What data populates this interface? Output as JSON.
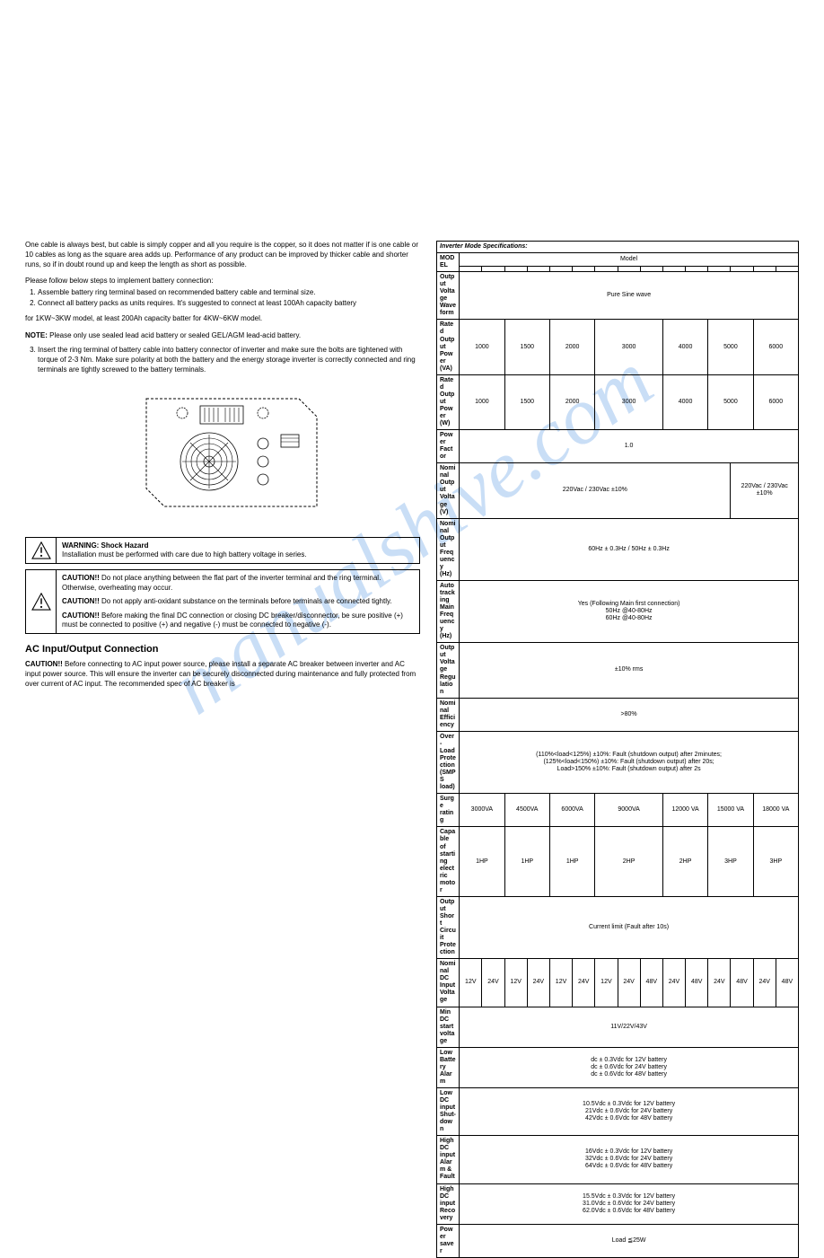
{
  "left": {
    "para1": "One cable is always best, but cable is simply copper and all you require is the copper, so it does not matter if is one cable or 10 cables as long as the square area adds up. Performance of any product can be improved by thicker cable and shorter runs, so if in doubt round up and keep the length as short as possible.",
    "follow": "Please follow below steps to implement battery connection:",
    "steps": [
      "Assemble battery ring terminal based on recommended battery cable and terminal size.",
      "Connect all battery packs as units requires. It's suggested to connect at least 100Ah capacity battery"
    ],
    "step2_cont": "for 1KW~3KW model, at least 200Ah capacity batter for 4KW~6KW model.",
    "note_label": "NOTE:",
    "note_text": " Please only use sealed lead acid battery or sealed GEL/AGM lead-acid battery.",
    "step3": "Insert the ring terminal of battery cable into battery connector of inverter and make sure the bolts are tightened with torque of 2-3 Nm. Make sure polarity at both the battery and the energy storage inverter is correctly connected and ring terminals are tightly screwed to the battery terminals.",
    "warning_title": "WARNING: Shock Hazard",
    "warning_text": "Installation must be performed with care due to high battery voltage in series.",
    "caution1_bold": "CAUTION!!",
    "caution1_text": " Do not place anything between the flat part of the inverter terminal and the ring terminal. Otherwise, overheating may occur.",
    "caution2_bold": "CAUTION!!",
    "caution2_text": " Do not apply anti-oxidant substance on the terminals before terminals are connected tightly.",
    "caution3_bold": "CAUTION!!",
    "caution3_text": " Before making the final DC connection or closing DC breaker/disconnector, be sure positive (+) must be connected to positive (+) and negative (-) must be connected to negative (-).",
    "section_title": "AC Input/Output Connection",
    "ac_caution_bold": "CAUTION!!",
    "ac_caution_text": " Before connecting to AC input power source, please install a separate AC breaker between inverter and AC input power source. This will ensure the inverter can be securely disconnected during maintenance and fully protected from over current of AC input. The recommended spec of AC breaker is"
  },
  "spec": {
    "title": "Inverter Mode Specifications:",
    "model_label": "MODEL",
    "model_head": "Model",
    "rows": {
      "waveform_label": "Output Voltage Waveform",
      "waveform_val": "Pure Sine wave",
      "rated_va_label": "Rated Output Power (VA)",
      "rated_w_label": "Rated Output Power (W)",
      "va_vals": [
        "1000",
        "1500",
        "2000",
        "3000",
        "4000",
        "5000",
        "6000"
      ],
      "w_vals": [
        "1000",
        "1500",
        "2000",
        "3000",
        "4000",
        "5000",
        "6000"
      ],
      "pf_label": "Power Factor",
      "pf_val": "1.0",
      "nom_v_label": "Nominal Output Voltage (V)",
      "nom_v_main": "220Vac / 230Vac ±10%",
      "nom_v_side": "220Vac / 230Vac ±10%",
      "nom_f_label": "Nominal Output Frequency (Hz)",
      "nom_f_val": "60Hz ± 0.3Hz / 50Hz ± 0.3Hz",
      "auto_label": "Auto tracking Main Frequency (Hz)",
      "auto_val": "Yes (Following Main first connection)\n50Hz @40-80Hz\n60Hz @40-80Hz",
      "reg_label": "Output Voltage Regulation",
      "reg_val": "±10% rms",
      "eff_label": "Nominal Efficiency",
      "eff_val": ">80%",
      "ol_label": "Over-Load Protection (SMPS load)",
      "ol_val": "(110%<load<125%) ±10%: Fault (shutdown output) after 2minutes;\n(125%<load<150%) ±10%: Fault (shutdown output) after 20s;\nLoad>150% ±10%: Fault (shutdown output) after 2s",
      "surge_label": "Surge rating",
      "surge_vals": [
        "3000VA",
        "4500VA",
        "6000VA",
        "9000VA",
        "12000 VA",
        "15000 VA",
        "18000 VA"
      ],
      "motor_label": "Capable of starting electric motor",
      "motor_vals": [
        "1HP",
        "1HP",
        "1HP",
        "2HP",
        "2HP",
        "3HP",
        "3HP"
      ],
      "short_label": "Output Short Circuit Protection",
      "short_val": "Current limit (Fault after 10s)",
      "dc_in_label": "Nominal DC Input Voltage",
      "dc_in_vals": [
        "12V",
        "24V",
        "12V",
        "24V",
        "12V",
        "24V",
        "12V",
        "24V",
        "48V",
        "24V",
        "48V",
        "24V",
        "48V",
        "24V",
        "48V"
      ],
      "min_dc_label": "Min DC start voltage",
      "min_dc_val": "11V/22V/43V",
      "low_batt_label": "Low Battery Alarm",
      "low_batt_val": "dc ± 0.3Vdc for 12V battery\ndc ± 0.6Vdc for 24V battery\ndc ± 0.6Vdc for 48V battery",
      "low_dc_shut_label": "Low DC input Shut-down",
      "low_dc_shut_val": "10.5Vdc ± 0.3Vdc for 12V battery\n21Vdc ± 0.6Vdc for 24V battery\n42Vdc ± 0.6Vdc for 48V battery",
      "high_dc_alarm_label": "High DC input Alarm & Fault",
      "high_dc_alarm_val": "16Vdc ± 0.3Vdc for 12V battery\n32Vdc ± 0.6Vdc for 24V battery\n64Vdc ± 0.6Vdc for 48V battery",
      "high_dc_rec_label": "High DC input Recovery",
      "high_dc_rec_val": "15.5Vdc ± 0.3Vdc for 12V battery\n31.0Vdc ± 0.6Vdc for 24V battery\n62.0Vdc ± 0.6Vdc for 48V battery",
      "saver_label": "Power saver",
      "saver_val": "Load ≦25W"
    }
  },
  "colors": {
    "border": "#000000",
    "text": "#000000",
    "watermark": "rgba(100,160,230,0.35)"
  }
}
